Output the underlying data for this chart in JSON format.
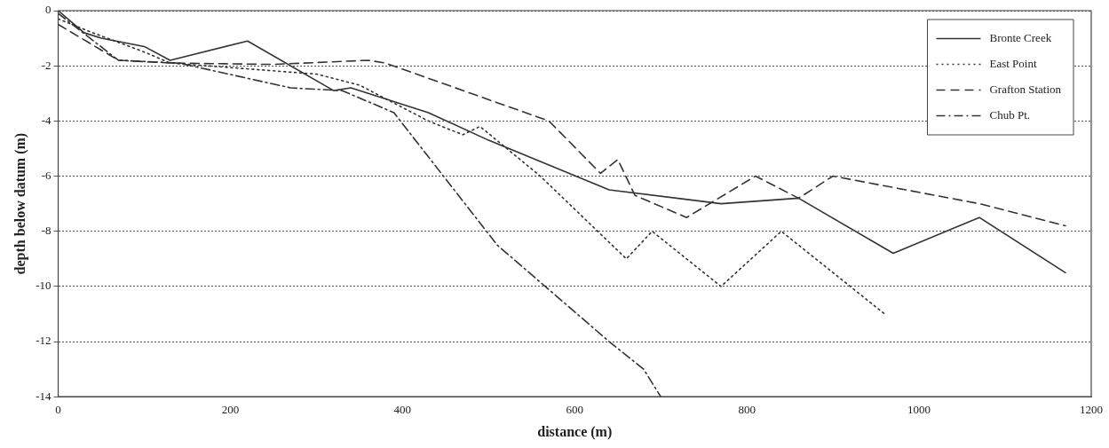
{
  "chart_data": {
    "type": "line",
    "xlabel": "distance (m)",
    "ylabel": "depth below datum (m)",
    "xlim": [
      0,
      1200
    ],
    "xticks": [
      0,
      200,
      400,
      600,
      800,
      1000,
      1200
    ],
    "ylim": [
      -14,
      0
    ],
    "yticks": [
      -14,
      -12,
      -10,
      -8,
      -6,
      -4,
      -2,
      0
    ],
    "grid": "y",
    "legend": "top right",
    "marker": "none",
    "series": [
      {
        "name": "Bronte Creek",
        "color": "#333333",
        "line_style": "solid",
        "x": [
          0,
          30,
          50,
          100,
          130,
          220,
          320,
          340,
          430,
          500,
          640,
          770,
          860,
          970,
          1070,
          1170
        ],
        "values": [
          0,
          -0.8,
          -1.0,
          -1.3,
          -1.8,
          -1.1,
          -2.9,
          -2.8,
          -3.7,
          -4.7,
          -6.5,
          -7.0,
          -6.8,
          -8.8,
          -7.5,
          -9.5
        ]
      },
      {
        "name": "East Point",
        "color": "#333333",
        "line_style": "dotted",
        "x": [
          0,
          40,
          100,
          130,
          300,
          350,
          430,
          470,
          490,
          560,
          660,
          690,
          770,
          840,
          960
        ],
        "values": [
          -0.3,
          -0.8,
          -1.5,
          -1.9,
          -2.3,
          -2.7,
          -4.0,
          -4.5,
          -4.2,
          -6.0,
          -9.0,
          -8.0,
          -10.0,
          -8.0,
          -11.0
        ]
      },
      {
        "name": "Grafton Station",
        "color": "#333333",
        "line_style": "dashed",
        "x": [
          0,
          70,
          130,
          250,
          360,
          380,
          570,
          630,
          650,
          670,
          730,
          810,
          860,
          900,
          1070,
          1170
        ],
        "values": [
          -0.5,
          -1.8,
          -1.9,
          -1.95,
          -1.8,
          -1.9,
          -4.0,
          -5.9,
          -5.4,
          -6.7,
          -7.5,
          -6.0,
          -6.8,
          -6.0,
          -7.0,
          -7.8
        ]
      },
      {
        "name": "Chub Pt.",
        "color": "#333333",
        "line_style": "dashdot",
        "x": [
          0,
          70,
          140,
          270,
          330,
          390,
          510,
          640,
          680,
          700
        ],
        "values": [
          -0.1,
          -1.8,
          -1.9,
          -2.8,
          -2.9,
          -3.7,
          -8.5,
          -12.0,
          -13.0,
          -14.0
        ]
      }
    ]
  }
}
